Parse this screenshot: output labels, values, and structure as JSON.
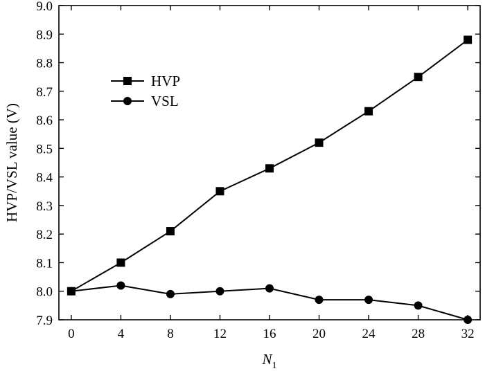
{
  "chart_data": {
    "type": "line",
    "x": [
      0,
      4,
      8,
      12,
      16,
      20,
      24,
      28,
      32
    ],
    "series": [
      {
        "name": "HVP",
        "marker": "square",
        "values": [
          8.0,
          8.1,
          8.21,
          8.35,
          8.43,
          8.52,
          8.63,
          8.75,
          8.88
        ]
      },
      {
        "name": "VSL",
        "marker": "circle",
        "values": [
          8.0,
          8.02,
          7.99,
          8.0,
          8.01,
          7.97,
          7.97,
          7.95,
          7.9
        ]
      }
    ],
    "xlabel": "N",
    "xlabel_subscript": "1",
    "ylabel": "HVP/VSL value (V)",
    "xlim": [
      -1,
      33
    ],
    "ylim": [
      7.9,
      9.0
    ],
    "xticks": [
      "0",
      "4",
      "8",
      "12",
      "16",
      "20",
      "24",
      "28",
      "32"
    ],
    "yticks": [
      "7.9",
      "8.0",
      "8.1",
      "8.2",
      "8.3",
      "8.4",
      "8.5",
      "8.6",
      "8.7",
      "8.8",
      "8.9",
      "9.0"
    ],
    "grid": false,
    "legend_position": "upper-left",
    "line_color": "#000000"
  }
}
